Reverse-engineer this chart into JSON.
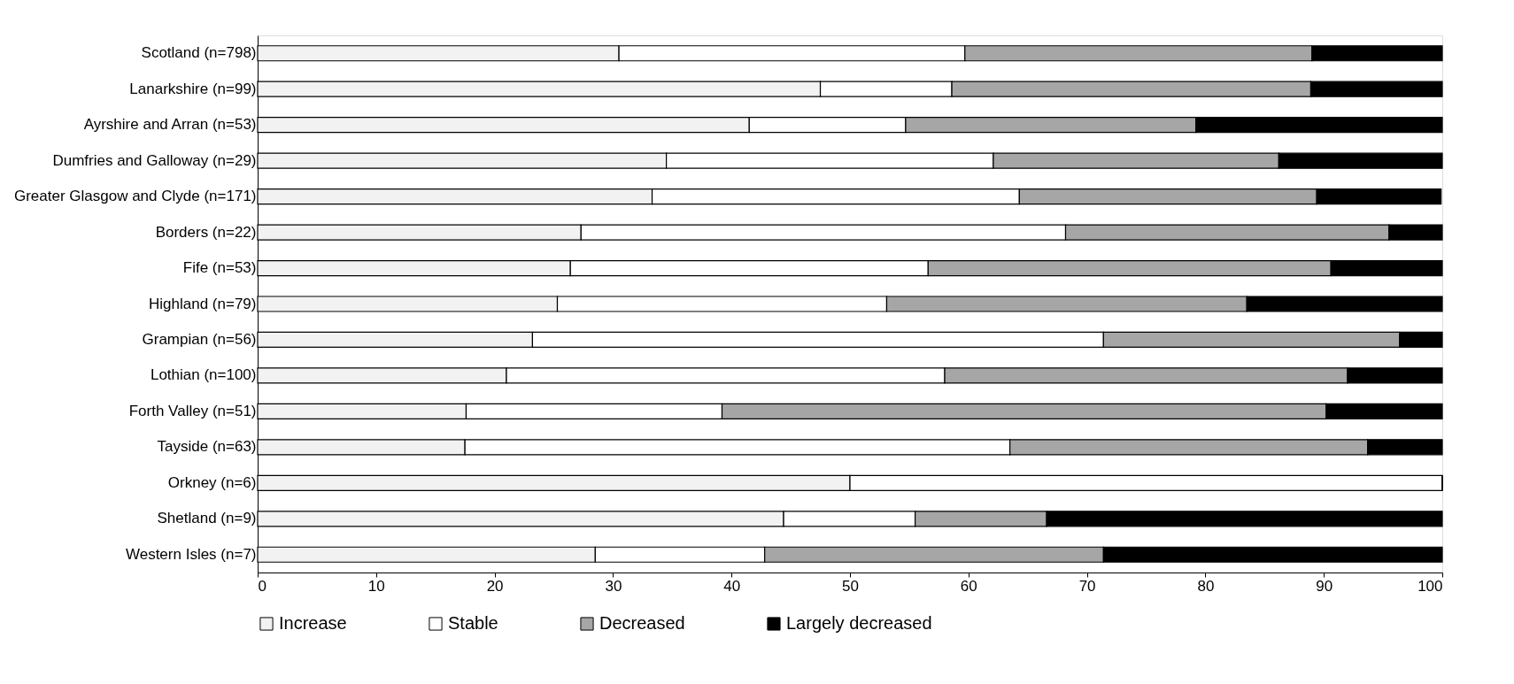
{
  "chart_data": {
    "type": "bar",
    "orientation": "horizontal",
    "stacked": true,
    "categories": [
      "Scotland (n=798)",
      "Lanarkshire (n=99)",
      "Ayrshire and Arran (n=53)",
      "Dumfries and Galloway (n=29)",
      "Greater Glasgow and Clyde (n=171)",
      "Borders (n=22)",
      "Fife (n=53)",
      "Highland (n=79)",
      "Grampian (n=56)",
      "Lothian (n=100)",
      "Forth Valley (n=51)",
      "Tayside (n=63)",
      "Orkney (n=6)",
      "Shetland (n=9)",
      "Western Isles (n=7)"
    ],
    "series": [
      {
        "name": "Increase",
        "color": "#f2f2f2",
        "values": [
          30.5,
          47.5,
          41.5,
          34.5,
          33.3,
          27.3,
          26.4,
          25.3,
          23.2,
          21,
          17.6,
          17.5,
          50,
          44.4,
          28.5
        ]
      },
      {
        "name": "Stable",
        "color": "#ffffff",
        "values": [
          29.2,
          11.1,
          13.2,
          27.6,
          31.0,
          40.9,
          30.2,
          27.8,
          48.2,
          37,
          21.6,
          46.0,
          50,
          11.1,
          14.3
        ]
      },
      {
        "name": "Decreased",
        "color": "#a6a6a6",
        "values": [
          29.3,
          30.3,
          24.5,
          24.1,
          25.1,
          27.3,
          34.0,
          30.4,
          25.0,
          34,
          51.0,
          30.2,
          0,
          11.1,
          28.6
        ]
      },
      {
        "name": "Largely decreased",
        "color": "#000000",
        "values": [
          11.0,
          11.1,
          20.8,
          13.8,
          10.5,
          4.5,
          9.4,
          16.5,
          3.6,
          8,
          9.8,
          6.3,
          0,
          33.4,
          28.6
        ]
      }
    ],
    "xlim": [
      0,
      100
    ],
    "xticks": [
      0,
      10,
      20,
      30,
      40,
      50,
      60,
      70,
      80,
      90,
      100
    ],
    "grid": false,
    "legend": "bottom"
  }
}
